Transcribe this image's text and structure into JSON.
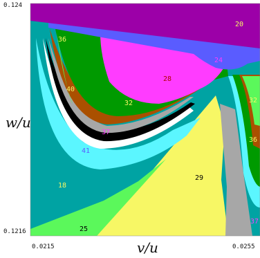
{
  "chart_data": {
    "type": "heatmap",
    "xlabel": "v/u",
    "ylabel": "w/u",
    "x_tick_labels": [
      "0.0215",
      "0.0255"
    ],
    "y_tick_labels": [
      "0.124",
      "0.1216"
    ],
    "xlim": [
      0.0215,
      0.0255
    ],
    "ylim": [
      0.1216,
      0.124
    ],
    "region_labels": [
      "20",
      "24",
      "28",
      "32",
      "32",
      "36",
      "36",
      "40",
      "37",
      "41",
      "18",
      "29",
      "25",
      "37"
    ],
    "colors": {
      "purple": "#9c00a8",
      "blue": "#5a5cff",
      "magenta": "#ff3cff",
      "green": "#009a00",
      "brown": "#aa5000",
      "teal": "#00a3a3",
      "cyan": "#5bf6ff",
      "yellow": "#f7f765",
      "gray": "#a7a7a7",
      "light_green": "#5bf85b",
      "black": "#000000",
      "white": "#ffffff"
    }
  }
}
